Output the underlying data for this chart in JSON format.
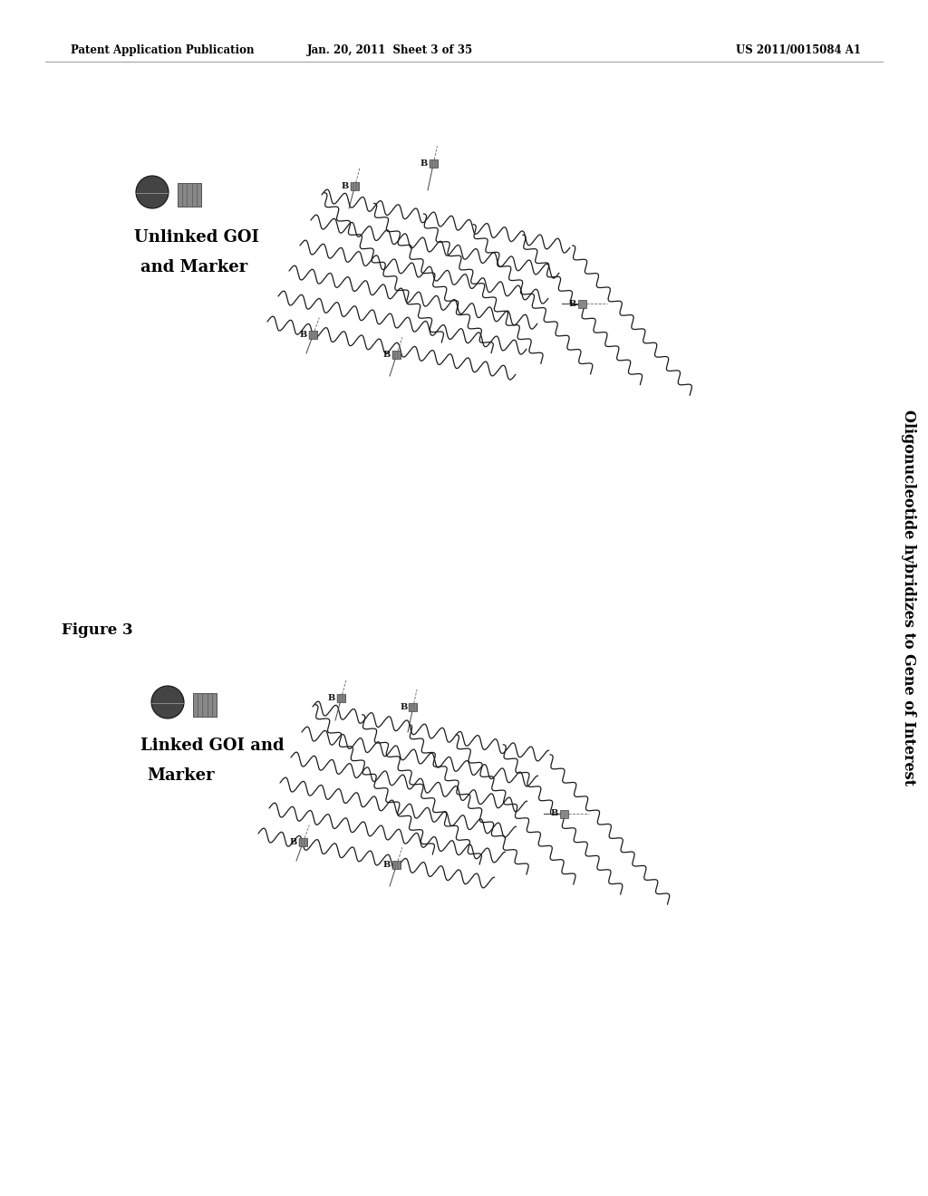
{
  "header_left": "Patent Application Publication",
  "header_mid": "Jan. 20, 2011  Sheet 3 of 35",
  "header_right": "US 2011/0015084 A1",
  "figure_label": "Figure 3",
  "right_label": "Oligonucleotide hybridizes to Gene of Interest",
  "panel_top_label_line1": "Unlinked GOI",
  "panel_top_label_line2": "and Marker",
  "panel_bot_label_line1": "Linked GOI and",
  "panel_bot_label_line2": "Marker",
  "bg_color": "#ffffff",
  "text_color": "#000000"
}
